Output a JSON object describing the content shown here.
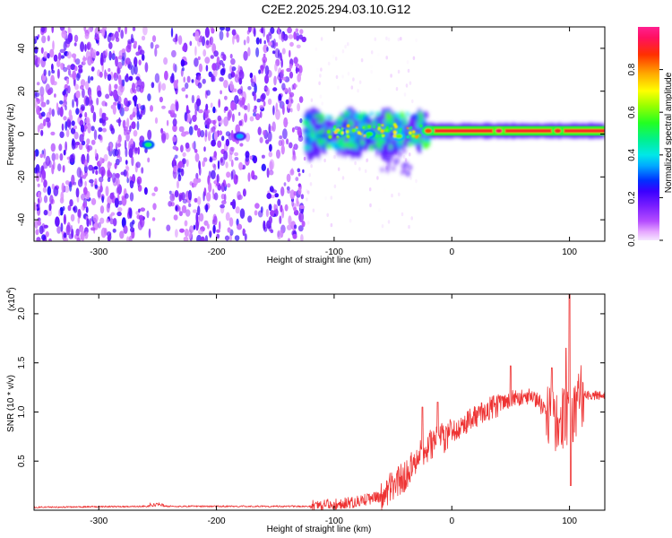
{
  "title": "C2E2.2025.294.03.10.G12",
  "colors": {
    "snr_line": "#ee3333",
    "background_ink": "#8a2be2",
    "frame": "#000000"
  },
  "chart_data": [
    {
      "type": "heatmap",
      "name": "spectrogram",
      "xlabel": "Height of straight line (km)",
      "ylabel": "Frequency (Hz)",
      "xlim": [
        -355,
        130
      ],
      "ylim": [
        -50,
        50
      ],
      "x_ticks": [
        -300,
        -200,
        -100,
        0,
        100
      ],
      "x_tick_labels": [
        "-300",
        "-200",
        "-100",
        "0",
        "100"
      ],
      "y_ticks": [
        -40,
        -20,
        0,
        20,
        40
      ],
      "y_tick_labels": [
        "-40",
        "-20",
        "0",
        "20",
        "40"
      ],
      "noise_region_x": [
        -355,
        -125
      ],
      "signal_ridge_frequency_hz": 1.5,
      "hotspots": [
        {
          "x": -258,
          "y": -5,
          "amp": 0.5
        },
        {
          "x": -180,
          "y": -1,
          "amp": 0.35
        },
        {
          "x": -95,
          "y": 1,
          "amp": 0.5
        },
        {
          "x": -70,
          "y": 0,
          "amp": 0.55
        },
        {
          "x": -45,
          "y": -1,
          "amp": 0.6
        },
        {
          "x": -20,
          "y": 1.5,
          "amp": 0.85
        },
        {
          "x": 40,
          "y": 1.5,
          "amp": 0.95
        },
        {
          "x": 90,
          "y": 1.5,
          "amp": 0.9
        }
      ],
      "colorbar": {
        "label": "Normalized spectral amplitude",
        "range": [
          0,
          1
        ],
        "ticks": [
          0.0,
          0.2,
          0.4,
          0.6,
          0.8
        ],
        "tick_labels": [
          "0.0",
          "0.2",
          "0.4",
          "0.6",
          "0.8"
        ]
      }
    },
    {
      "type": "line",
      "name": "snr",
      "xlabel": "Height of straight line (km)",
      "ylabel": "SNR (10 * v/v)",
      "y_scale_label": "(x10",
      "y_scale_exponent": "4",
      "xlim": [
        -355,
        130
      ],
      "ylim": [
        0,
        2.2
      ],
      "x_ticks": [
        -300,
        -200,
        -100,
        0,
        100
      ],
      "x_tick_labels": [
        "-300",
        "-200",
        "-100",
        "0",
        "100"
      ],
      "y_ticks": [
        0.5,
        1.0,
        1.5,
        2.0
      ],
      "y_tick_labels": [
        "0.5",
        "1.0",
        "1.5",
        "2.0"
      ],
      "trend_x": [
        -355,
        -250,
        -120,
        -100,
        -80,
        -60,
        -40,
        -30,
        -20,
        -10,
        0,
        10,
        30,
        50,
        70,
        80,
        90,
        100,
        110,
        130
      ],
      "trend_y": [
        0.03,
        0.04,
        0.04,
        0.06,
        0.09,
        0.14,
        0.35,
        0.52,
        0.65,
        0.72,
        0.78,
        0.88,
        1.02,
        1.13,
        1.16,
        1.0,
        0.9,
        0.95,
        1.16,
        1.18
      ],
      "spikes": [
        {
          "x": -25,
          "y": 1.05
        },
        {
          "x": -12,
          "y": 1.1
        },
        {
          "x": 50,
          "y": 1.47
        },
        {
          "x": 85,
          "y": 1.45
        },
        {
          "x": 97,
          "y": 1.65
        },
        {
          "x": 100,
          "y": 2.2
        },
        {
          "x": 101,
          "y": 0.25
        }
      ]
    }
  ]
}
